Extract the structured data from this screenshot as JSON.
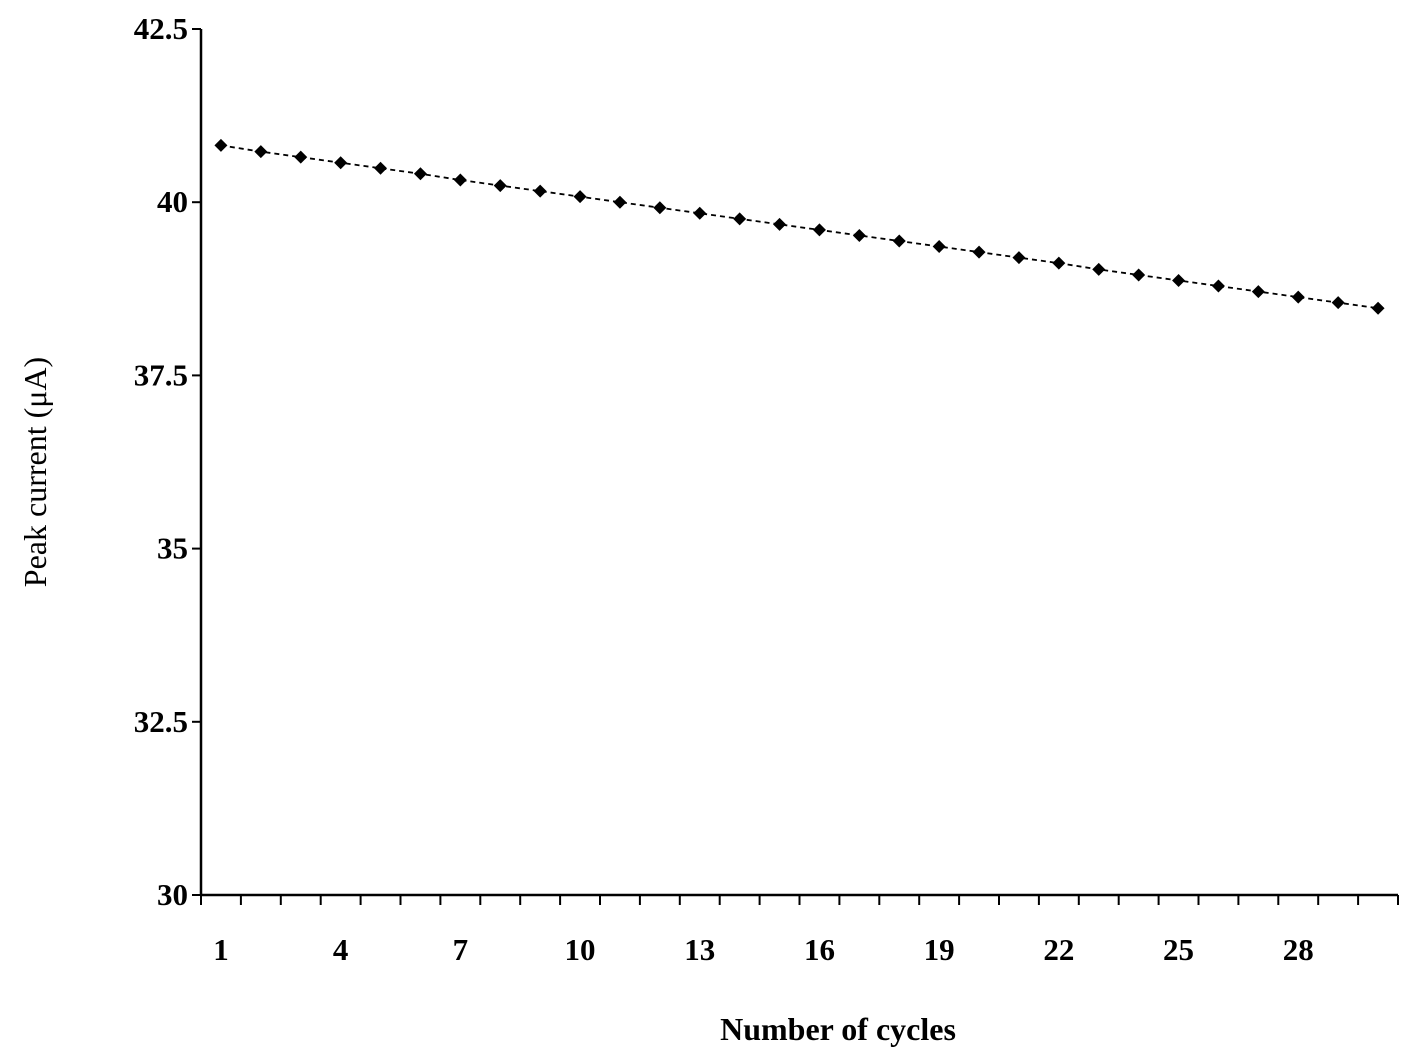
{
  "chart_data": {
    "type": "line",
    "title": "",
    "xlabel": "Number of cycles",
    "ylabel": "Peak current (μA)",
    "xlim": [
      0.5,
      30.5
    ],
    "ylim": [
      30,
      42.5
    ],
    "x_ticks": [
      1,
      4,
      7,
      10,
      13,
      16,
      19,
      22,
      25,
      28
    ],
    "x_tick_labels": [
      "1",
      "4",
      "7",
      "10",
      "13",
      "16",
      "19",
      "22",
      "25",
      "28"
    ],
    "y_ticks": [
      30,
      32.5,
      35,
      37.5,
      40,
      42.5
    ],
    "y_tick_labels": [
      "30",
      "32.5",
      "35",
      "37.5",
      "40",
      "42.5"
    ],
    "grid": false,
    "legend": "none",
    "series": [
      {
        "line_style": "dashed",
        "marker": "diamond",
        "color": "#000000",
        "x": [
          1,
          2,
          3,
          4,
          5,
          6,
          7,
          8,
          9,
          10,
          11,
          12,
          13,
          14,
          15,
          16,
          17,
          18,
          19,
          20,
          21,
          22,
          23,
          24,
          25,
          26,
          27,
          28,
          29,
          30
        ],
        "values": [
          40.82,
          40.73,
          40.65,
          40.57,
          40.49,
          40.41,
          40.32,
          40.24,
          40.16,
          40.08,
          40.0,
          39.92,
          39.84,
          39.76,
          39.68,
          39.6,
          39.52,
          39.44,
          39.36,
          39.28,
          39.2,
          39.12,
          39.03,
          38.95,
          38.87,
          38.79,
          38.71,
          38.63,
          38.55,
          38.47
        ]
      }
    ]
  }
}
